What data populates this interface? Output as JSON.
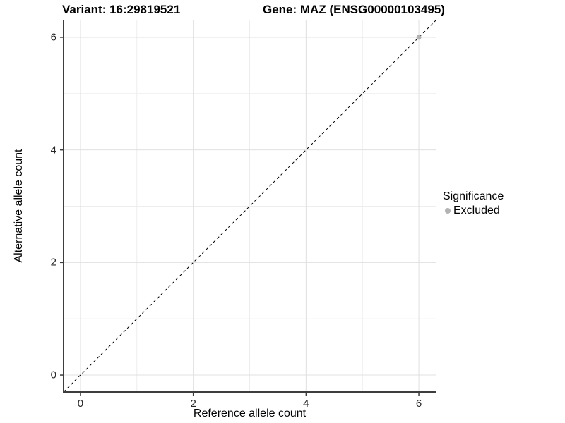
{
  "title": {
    "variant": "Variant: 16:29819521",
    "gene": "Gene: MAZ (ENSG00000103495)"
  },
  "chart_data": {
    "type": "scatter",
    "title": "Variant: 16:29819521   Gene: MAZ (ENSG00000103495)",
    "xlabel": "Reference allele count",
    "ylabel": "Alternative allele count",
    "xlim": [
      -0.3,
      6.3
    ],
    "ylim": [
      -0.3,
      6.3
    ],
    "x_major_ticks": [
      0,
      2,
      4,
      6
    ],
    "y_major_ticks": [
      0,
      2,
      4,
      6
    ],
    "x_minor_ticks": [
      1,
      3,
      5
    ],
    "y_minor_ticks": [
      1,
      3,
      5
    ],
    "x_tick_labels": [
      "0",
      "2",
      "4",
      "6"
    ],
    "y_tick_labels": [
      "0",
      "2",
      "4",
      "6"
    ],
    "grid": "on",
    "series": [
      {
        "name": "Excluded",
        "color": "#b3b3b3",
        "points": [
          [
            6,
            6
          ]
        ],
        "marker": "circle"
      }
    ],
    "reference_line": {
      "type": "identity",
      "style": "dashed",
      "color": "#000000",
      "from": [
        -0.3,
        -0.3
      ],
      "to": [
        6.3,
        6.3
      ]
    },
    "legend": {
      "position": "right",
      "title": "Significance",
      "entries": [
        {
          "label": "Excluded",
          "color": "#b3b3b3"
        }
      ]
    }
  },
  "colors": {
    "background": "#ffffff",
    "grid_major": "#e0e0e0",
    "grid_minor": "#ededed",
    "axis_line": "#3d3d3d",
    "tick_text": "#262626",
    "diagonal_line": "#000000",
    "point": "#b3b3b3"
  }
}
